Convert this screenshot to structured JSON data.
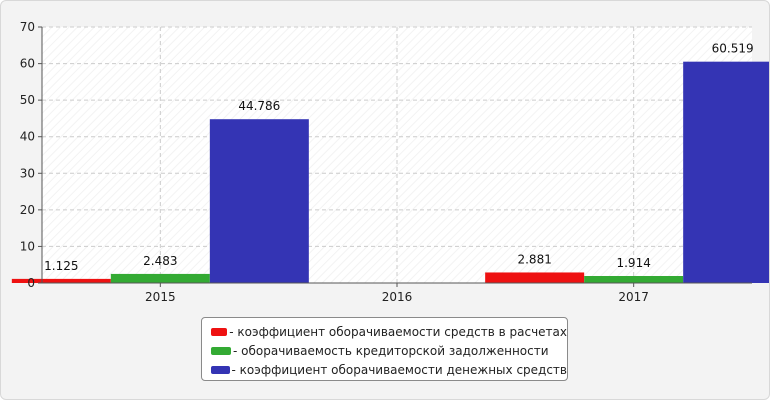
{
  "chart_data": {
    "type": "bar",
    "categories": [
      "2015",
      "2016",
      "2017"
    ],
    "series": [
      {
        "name": "- коэффициент оборачиваемости средств в расчетах",
        "color": "#ee1111",
        "values": [
          1.125,
          null,
          2.881
        ]
      },
      {
        "name": "- оборачиваемость кредиторской задолженности",
        "color": "#33aa33",
        "values": [
          2.483,
          null,
          1.914
        ]
      },
      {
        "name": "- коэффициент оборачиваемости денежных средств",
        "color": "#3434b4",
        "values": [
          44.786,
          null,
          60.519
        ]
      }
    ],
    "value_labels": [
      [
        "1.125",
        null,
        "2.881"
      ],
      [
        "2.483",
        null,
        "1.914"
      ],
      [
        "44.786",
        null,
        "60.519"
      ]
    ],
    "yticks": [
      "0",
      "10",
      "20",
      "30",
      "40",
      "50",
      "60",
      "70"
    ],
    "ylim": [
      0,
      70
    ],
    "grid": true,
    "legend_position": "bottom",
    "title": "",
    "xlabel": "",
    "ylabel": ""
  }
}
